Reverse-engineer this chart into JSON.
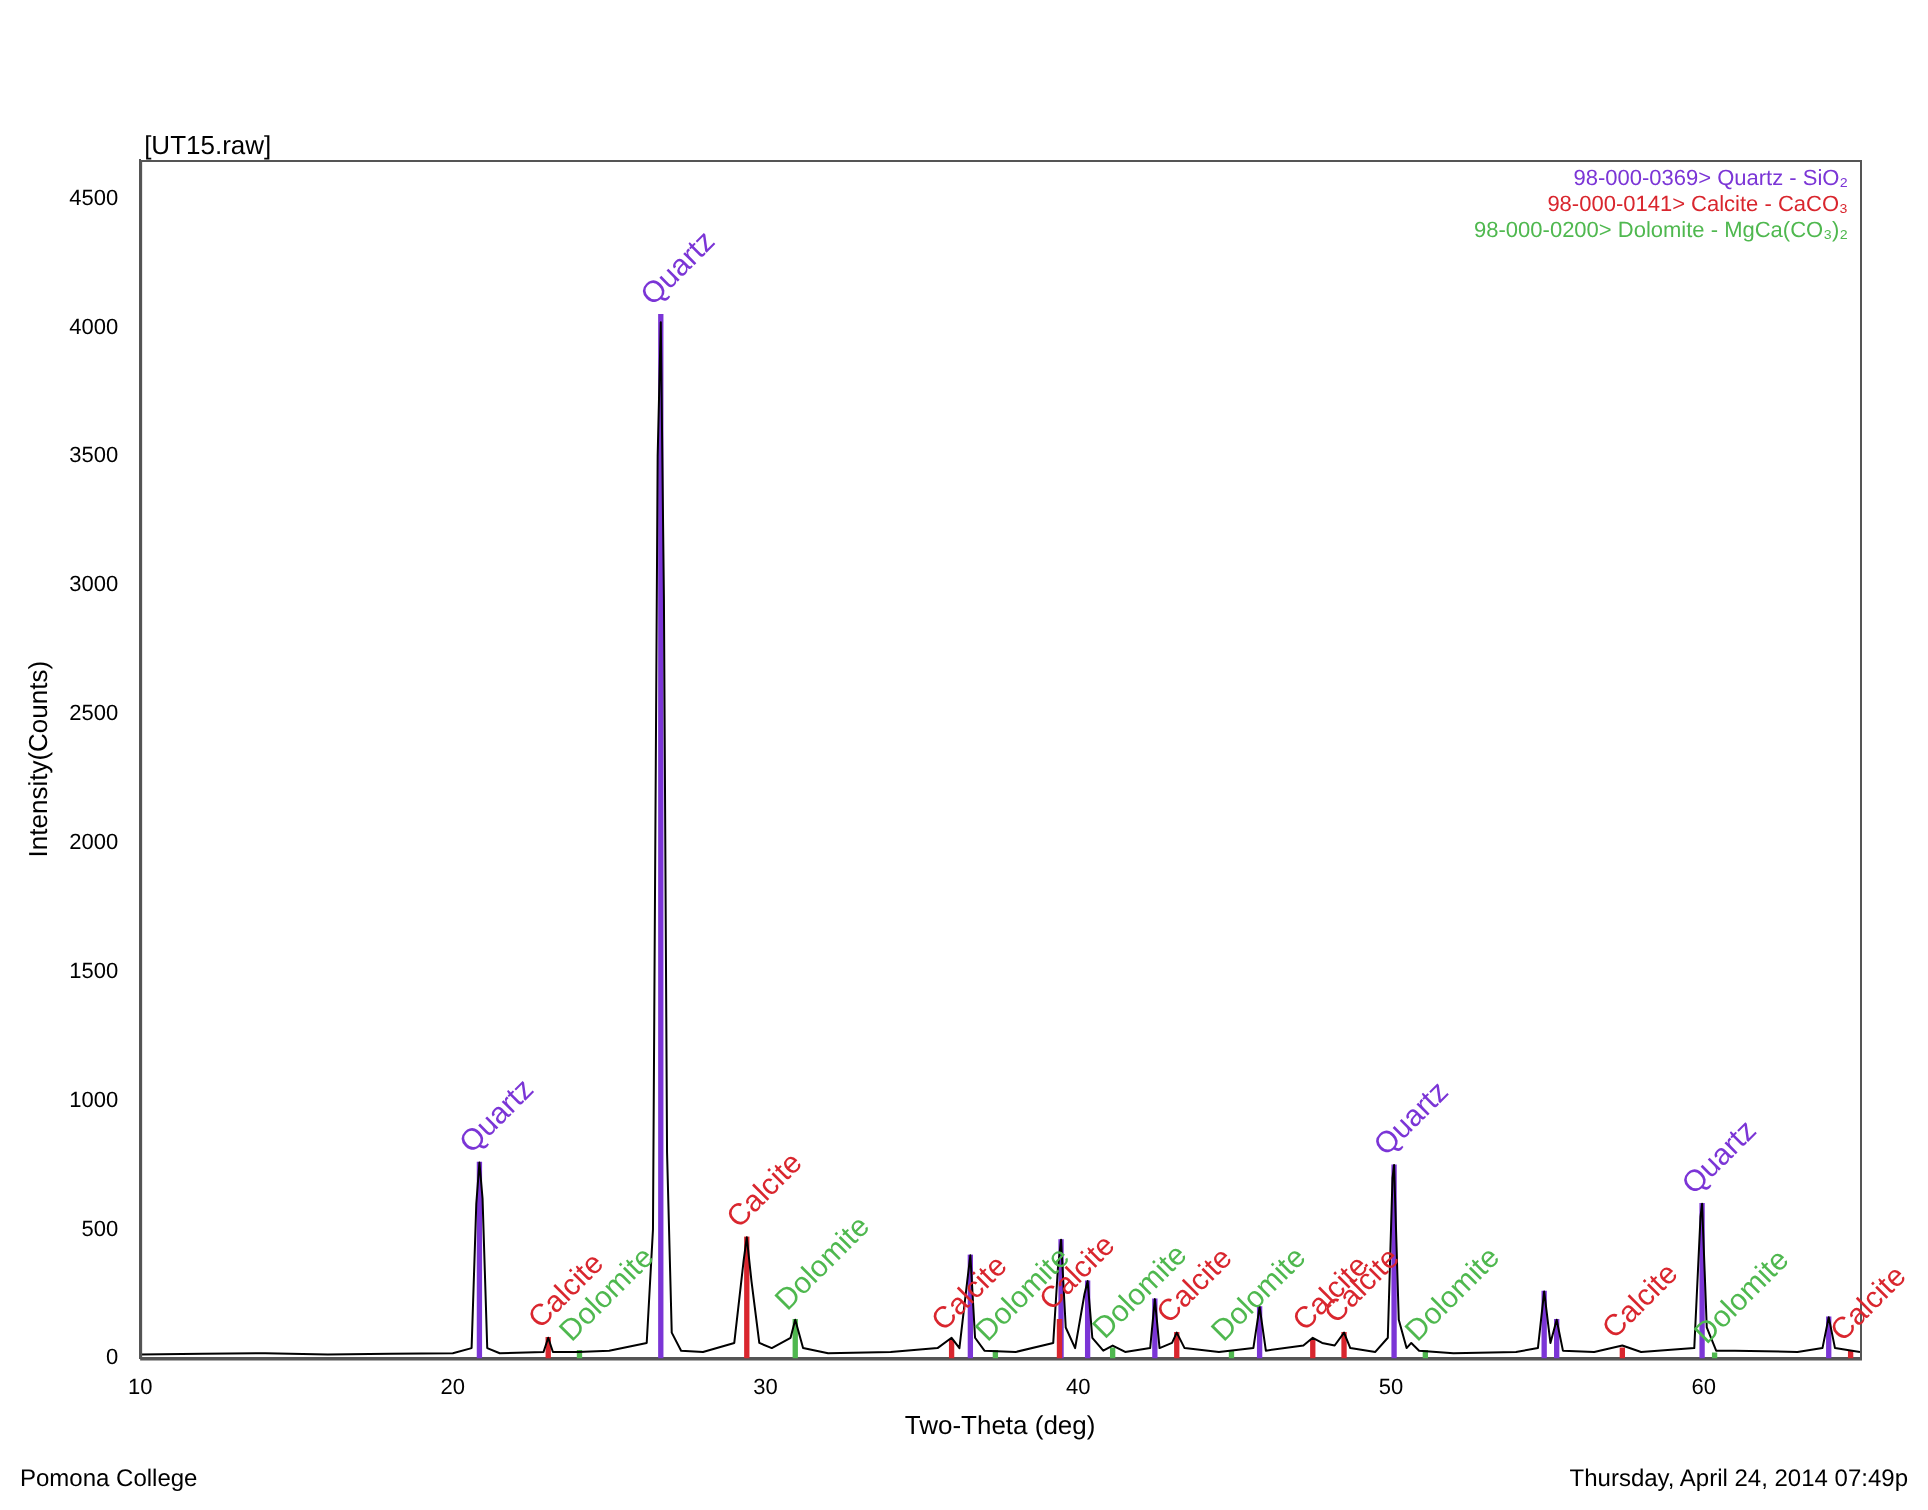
{
  "chart_data": {
    "type": "line",
    "title": "[UT15.raw]",
    "xlabel": "Two-Theta (deg)",
    "ylabel": "Intensity(Counts)",
    "xlim": [
      10,
      65
    ],
    "xticks": [
      10,
      20,
      30,
      40,
      50,
      60
    ],
    "ylim": [
      0,
      4650
    ],
    "yticks": [
      0,
      500,
      1000,
      1500,
      2000,
      2500,
      3000,
      3500,
      4000,
      4500
    ],
    "grid": false,
    "legend": "top right",
    "marker": "none",
    "series": [
      {
        "color": "#000000",
        "x": [
          10,
          12,
          14,
          16,
          18,
          20,
          20.6,
          20.75,
          20.85,
          20.95,
          21.1,
          21.5,
          22.9,
          23.05,
          23.2,
          24,
          25,
          26.2,
          26.4,
          26.55,
          26.65,
          26.75,
          26.85,
          27.0,
          27.3,
          28,
          29.0,
          29.3,
          29.4,
          29.55,
          29.8,
          30.2,
          30.8,
          30.95,
          31.2,
          32,
          34,
          35.5,
          35.95,
          36.2,
          36.45,
          36.55,
          36.7,
          37,
          38,
          39.2,
          39.35,
          39.45,
          39.6,
          39.9,
          40.2,
          40.3,
          40.45,
          40.8,
          41.1,
          41.5,
          42.3,
          42.45,
          42.6,
          43.0,
          43.15,
          43.4,
          44.5,
          45.6,
          45.8,
          46.0,
          47.2,
          47.5,
          47.8,
          48.2,
          48.5,
          48.7,
          49.5,
          49.9,
          50.05,
          50.1,
          50.25,
          50.5,
          50.65,
          50.9,
          52,
          54,
          54.7,
          54.9,
          55.1,
          55.3,
          55.5,
          56.5,
          57.4,
          58,
          59.7,
          59.9,
          59.95,
          60.1,
          60.4,
          61,
          63,
          63.8,
          64.0,
          64.2,
          65
        ],
        "values": [
          15,
          18,
          20,
          15,
          18,
          20,
          40,
          600,
          760,
          620,
          40,
          20,
          25,
          80,
          25,
          25,
          30,
          60,
          500,
          3500,
          4020,
          2950,
          800,
          100,
          30,
          25,
          60,
          380,
          470,
          300,
          60,
          40,
          80,
          150,
          40,
          20,
          25,
          40,
          80,
          40,
          300,
          400,
          80,
          30,
          25,
          60,
          350,
          460,
          120,
          40,
          250,
          300,
          80,
          30,
          50,
          25,
          40,
          230,
          40,
          60,
          100,
          40,
          25,
          40,
          200,
          30,
          50,
          80,
          60,
          50,
          100,
          40,
          25,
          80,
          700,
          750,
          150,
          40,
          60,
          30,
          20,
          25,
          40,
          260,
          60,
          150,
          30,
          25,
          50,
          25,
          40,
          550,
          600,
          120,
          30,
          30,
          25,
          40,
          160,
          40,
          25
        ]
      },
      {
        "type": "bar",
        "name": "98-000-0369> Quartz - SiO₂",
        "color": "#7b35d6",
        "x": [
          20.85,
          26.65,
          36.55,
          39.45,
          40.3,
          42.45,
          45.8,
          50.1,
          54.9,
          55.3,
          59.95,
          64.0
        ],
        "values": [
          760,
          4050,
          400,
          460,
          300,
          230,
          200,
          750,
          260,
          150,
          600,
          160
        ]
      },
      {
        "type": "bar",
        "name": "98-000-0141> Calcite - CaCO₃",
        "color": "#d9262e",
        "x": [
          23.05,
          29.4,
          35.95,
          39.4,
          43.15,
          47.5,
          48.5,
          57.4,
          64.7
        ],
        "values": [
          80,
          470,
          70,
          150,
          100,
          70,
          100,
          40,
          30
        ]
      },
      {
        "type": "bar",
        "name": "98-000-0200> Dolomite - MgCa(CO₃)₂",
        "color": "#4fb84f",
        "x": [
          24.05,
          30.95,
          37.35,
          41.1,
          44.9,
          51.1,
          60.35
        ],
        "values": [
          30,
          150,
          30,
          40,
          30,
          30,
          20
        ]
      }
    ],
    "annotations": [
      "Pomona College",
      "Thursday, April 24, 2014 07:49p",
      {
        "text": "Quartz",
        "x": 20.85,
        "y": 760
      },
      {
        "text": "Quartz",
        "x": 26.65,
        "y": 4050
      },
      {
        "text": "Quartz",
        "x": 50.1,
        "y": 750
      },
      {
        "text": "Quartz",
        "x": 59.95,
        "y": 600
      },
      {
        "text": "Calcite",
        "x": 23.05,
        "y": 80
      },
      {
        "text": "Calcite",
        "x": 29.4,
        "y": 470
      },
      {
        "text": "Calcite",
        "x": 35.95,
        "y": 70
      },
      {
        "text": "Calcite",
        "x": 39.4,
        "y": 150
      },
      {
        "text": "Calcite",
        "x": 43.15,
        "y": 100
      },
      {
        "text": "Calcite",
        "x": 47.5,
        "y": 70
      },
      {
        "text": "Calcite",
        "x": 48.5,
        "y": 100
      },
      {
        "text": "Calcite",
        "x": 57.4,
        "y": 40
      },
      {
        "text": "Calcite",
        "x": 64.7,
        "y": 30
      },
      {
        "text": "Dolomite",
        "x": 24.05,
        "y": 30
      },
      {
        "text": "Dolomite",
        "x": 30.95,
        "y": 150
      },
      {
        "text": "Dolomite",
        "x": 37.35,
        "y": 30
      },
      {
        "text": "Dolomite",
        "x": 41.1,
        "y": 40
      },
      {
        "text": "Dolomite",
        "x": 44.9,
        "y": 30
      },
      {
        "text": "Dolomite",
        "x": 51.1,
        "y": 30
      },
      {
        "text": "Dolomite",
        "x": 60.35,
        "y": 20
      }
    ]
  }
}
